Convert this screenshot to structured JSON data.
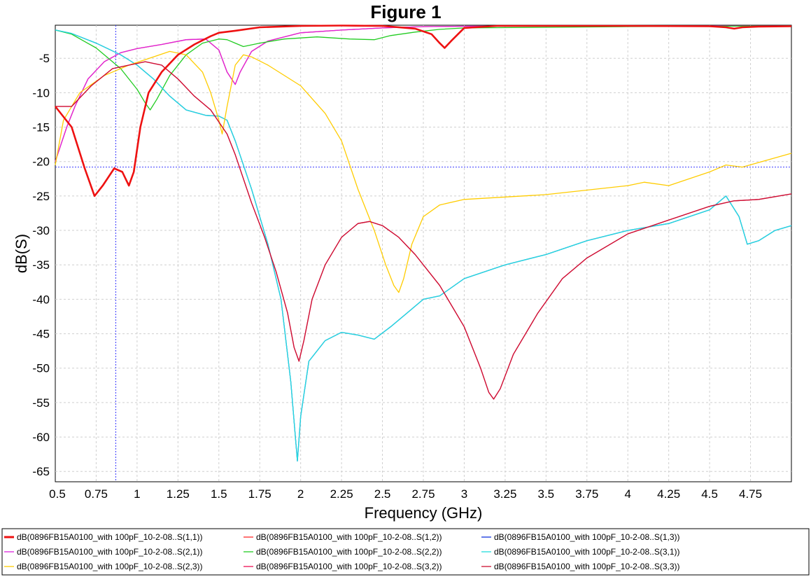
{
  "chart_data": {
    "type": "line",
    "title": "Figure 1",
    "xlabel": "Frequency (GHz)",
    "ylabel": "dB(S)",
    "xlim": [
      0.5,
      5.0
    ],
    "ylim": [
      -66.5,
      -0.2
    ],
    "grid": true,
    "x_ticks": [
      "0.5",
      "0.75",
      "1",
      "1.25",
      "1.5",
      "1.75",
      "2",
      "2.25",
      "2.5",
      "2.75",
      "3",
      "3.25",
      "3.5",
      "3.75",
      "4",
      "4.25",
      "4.5",
      "4.75"
    ],
    "y_ticks": [
      "-5",
      "-10",
      "-15",
      "-20",
      "-25",
      "-30",
      "-35",
      "-40",
      "-45",
      "-50",
      "-55",
      "-60",
      "-65"
    ],
    "x_tick_values": [
      0.5,
      0.75,
      1,
      1.25,
      1.5,
      1.75,
      2,
      2.25,
      2.5,
      2.75,
      3,
      3.25,
      3.5,
      3.75,
      4,
      4.25,
      4.5,
      4.75
    ],
    "y_tick_values": [
      -5,
      -10,
      -15,
      -20,
      -25,
      -30,
      -35,
      -40,
      -45,
      -50,
      -55,
      -60,
      -65
    ],
    "markers": {
      "x": 0.87,
      "y": -20.8,
      "color": "#3a3aff"
    },
    "legend_position": "bottom",
    "series": [
      {
        "name": "dB(0896FB15A0100_with 100pF_10-2-08..S(1,1))",
        "color": "#ee1111",
        "width": 2.6,
        "x": [
          0.5,
          0.6,
          0.68,
          0.74,
          0.79,
          0.86,
          0.91,
          0.95,
          0.98,
          1.02,
          1.07,
          1.15,
          1.25,
          1.35,
          1.45,
          1.5,
          1.6,
          1.75,
          2.0,
          2.25,
          2.5,
          2.7,
          2.8,
          2.85,
          2.88,
          2.92,
          3.0,
          3.2,
          3.5,
          4.0,
          4.5,
          4.6,
          4.65,
          4.7,
          4.8,
          5.0
        ],
        "values": [
          -12,
          -15,
          -21,
          -25,
          -23.5,
          -21,
          -21.5,
          -23.5,
          -21.5,
          -15,
          -10,
          -7,
          -4.5,
          -3,
          -1.8,
          -1.3,
          -1,
          -0.5,
          -0.3,
          -0.25,
          -0.3,
          -0.7,
          -1.5,
          -2.8,
          -3.5,
          -2.5,
          -0.6,
          -0.3,
          -0.3,
          -0.3,
          -0.35,
          -0.5,
          -0.7,
          -0.5,
          -0.4,
          -0.35
        ]
      },
      {
        "name": "dB(0896FB15A0100_with 100pF_10-2-08..S(1,2))",
        "color": "#ff2a2a",
        "width": 1.3,
        "x": [
          0.5,
          0.57,
          0.62,
          0.7,
          0.8,
          0.9,
          1.0,
          1.15,
          1.3,
          1.42,
          1.5,
          1.55,
          1.6,
          1.63,
          1.7,
          1.8,
          2.0,
          2.25,
          2.5,
          2.75,
          3.0,
          3.5,
          4.0,
          4.5,
          5.0
        ],
        "values": [
          -20,
          -15,
          -12,
          -8,
          -5.5,
          -4.2,
          -3.6,
          -3,
          -2.3,
          -2.2,
          -3.8,
          -7,
          -8.8,
          -7,
          -4,
          -2.5,
          -1.3,
          -0.9,
          -0.6,
          -0.4,
          -0.35,
          -0.3,
          -0.3,
          -0.3,
          -0.3
        ]
      },
      {
        "name": "dB(0896FB15A0100_with 100pF_10-2-08..S(1,3))",
        "color": "#1133dd",
        "width": 1.3,
        "x": [
          0.5,
          0.6,
          0.75,
          0.9,
          1.0,
          1.1,
          1.2,
          1.3,
          1.42,
          1.5,
          1.55,
          1.6,
          1.7,
          1.8,
          1.88,
          1.94,
          1.98,
          2.0,
          2.05,
          2.15,
          2.25,
          2.35,
          2.45,
          2.55,
          2.65,
          2.75,
          2.85,
          3.0,
          3.25,
          3.5,
          3.75,
          4.0,
          4.25,
          4.5,
          4.6,
          4.68,
          4.73,
          4.8,
          4.9,
          5.0
        ],
        "values": [
          -0.9,
          -1.4,
          -2.8,
          -4.5,
          -6,
          -8,
          -10.5,
          -12.5,
          -13.3,
          -13.4,
          -14,
          -17,
          -24,
          -32,
          -40,
          -52,
          -63.5,
          -57,
          -49,
          -46,
          -44.8,
          -45.2,
          -45.8,
          -44,
          -42,
          -40,
          -39.5,
          -37,
          -35,
          -33.5,
          -31.5,
          -30,
          -29,
          -27,
          -25,
          -28,
          -32,
          -31.5,
          -30,
          -29.3
        ]
      },
      {
        "name": "dB(0896FB15A0100_with 100pF_10-2-08..S(2,1))",
        "color": "#dd22dd",
        "width": 1.3,
        "x": [
          0.5,
          0.57,
          0.62,
          0.7,
          0.8,
          0.9,
          1.0,
          1.15,
          1.3,
          1.42,
          1.5,
          1.55,
          1.6,
          1.63,
          1.7,
          1.8,
          2.0,
          2.25,
          2.5,
          2.75,
          3.0,
          3.5,
          4.0,
          4.5,
          5.0
        ],
        "values": [
          -20,
          -15,
          -12,
          -8,
          -5.5,
          -4.2,
          -3.6,
          -3,
          -2.3,
          -2.2,
          -3.8,
          -7,
          -8.8,
          -7,
          -4,
          -2.5,
          -1.3,
          -0.9,
          -0.6,
          -0.4,
          -0.35,
          -0.3,
          -0.3,
          -0.3,
          -0.3
        ]
      },
      {
        "name": "dB(0896FB15A0100_with 100pF_10-2-08..S(2,2))",
        "color": "#22cc22",
        "width": 1.3,
        "x": [
          0.5,
          0.6,
          0.75,
          0.9,
          1.0,
          1.05,
          1.08,
          1.12,
          1.2,
          1.3,
          1.4,
          1.5,
          1.55,
          1.6,
          1.65,
          1.75,
          1.9,
          2.1,
          2.3,
          2.45,
          2.55,
          2.7,
          2.85,
          3.0,
          3.5,
          4.0,
          4.5,
          5.0
        ],
        "values": [
          -0.9,
          -1.5,
          -3.5,
          -6.5,
          -9.5,
          -11.5,
          -12.5,
          -11,
          -7.5,
          -4.5,
          -2.8,
          -2.2,
          -2.3,
          -2.8,
          -3.3,
          -2.8,
          -2.2,
          -1.9,
          -2.2,
          -2.3,
          -1.7,
          -1.2,
          -0.8,
          -0.6,
          -0.5,
          -0.4,
          -0.35,
          -0.3
        ]
      },
      {
        "name": "dB(0896FB15A0100_with 100pF_10-2-08..S(3,1))",
        "color": "#22dddd",
        "width": 1.3,
        "x": [
          0.5,
          0.6,
          0.75,
          0.9,
          1.0,
          1.1,
          1.2,
          1.3,
          1.42,
          1.5,
          1.55,
          1.6,
          1.7,
          1.8,
          1.88,
          1.94,
          1.98,
          2.0,
          2.05,
          2.15,
          2.25,
          2.35,
          2.45,
          2.55,
          2.65,
          2.75,
          2.85,
          3.0,
          3.25,
          3.5,
          3.75,
          4.0,
          4.25,
          4.5,
          4.6,
          4.68,
          4.73,
          4.8,
          4.9,
          5.0
        ],
        "values": [
          -0.9,
          -1.4,
          -2.8,
          -4.5,
          -6,
          -8,
          -10.5,
          -12.5,
          -13.3,
          -13.4,
          -14,
          -17,
          -24,
          -32,
          -40,
          -52,
          -63.5,
          -57,
          -49,
          -46,
          -44.8,
          -45.2,
          -45.8,
          -44,
          -42,
          -40,
          -39.5,
          -37,
          -35,
          -33.5,
          -31.5,
          -30,
          -29,
          -27,
          -25,
          -28,
          -32,
          -31.5,
          -30,
          -29.3
        ]
      },
      {
        "name": "dB(0896FB15A0100_with 100pF_10-2-08..S(2,3))",
        "color": "#ffcc00",
        "width": 1.3,
        "x": [
          0.5,
          0.55,
          0.65,
          0.8,
          0.95,
          1.1,
          1.2,
          1.3,
          1.4,
          1.45,
          1.5,
          1.52,
          1.55,
          1.6,
          1.65,
          1.7,
          1.8,
          2.0,
          2.15,
          2.25,
          2.35,
          2.45,
          2.52,
          2.57,
          2.6,
          2.63,
          2.68,
          2.75,
          2.85,
          3.0,
          3.5,
          4.0,
          4.1,
          4.25,
          4.5,
          4.6,
          4.7,
          5.0
        ],
        "values": [
          -20.5,
          -14,
          -10,
          -7.5,
          -6,
          -4.8,
          -4,
          -4.5,
          -7,
          -10,
          -14,
          -16,
          -12,
          -6,
          -4.5,
          -4.8,
          -6,
          -9,
          -13,
          -17,
          -24,
          -30,
          -35,
          -38,
          -39,
          -37,
          -32,
          -28,
          -26.3,
          -25.5,
          -24.8,
          -23.5,
          -23,
          -23.5,
          -21.5,
          -20.5,
          -20.8,
          -18.8
        ]
      },
      {
        "name": "dB(0896FB15A0100_with 100pF_10-2-08..S(3,2))",
        "color": "#ee1155",
        "width": 1.3,
        "x": [
          0.5,
          0.6,
          0.72,
          0.85,
          0.95,
          1.05,
          1.15,
          1.25,
          1.35,
          1.45,
          1.55,
          1.6,
          1.7,
          1.78,
          1.85,
          1.92,
          1.96,
          1.99,
          2.02,
          2.07,
          2.15,
          2.25,
          2.35,
          2.42,
          2.5,
          2.6,
          2.7,
          2.85,
          3.0,
          3.1,
          3.15,
          3.18,
          3.22,
          3.3,
          3.45,
          3.6,
          3.75,
          4.0,
          4.25,
          4.5,
          4.65,
          4.8,
          5.0
        ],
        "values": [
          -12,
          -12,
          -9,
          -6.5,
          -6,
          -5.5,
          -6,
          -8,
          -10.5,
          -12.5,
          -16,
          -19,
          -26,
          -31,
          -36,
          -42,
          -47,
          -49,
          -46,
          -40,
          -35,
          -31,
          -29,
          -28.7,
          -29.3,
          -31,
          -33.5,
          -38,
          -44,
          -50,
          -53.5,
          -54.5,
          -53,
          -48,
          -42,
          -37,
          -34,
          -30.5,
          -28.5,
          -26.5,
          -25.7,
          -25.5,
          -24.7
        ]
      },
      {
        "name": "dB(0896FB15A0100_with 100pF_10-2-08..S(3,3))",
        "color": "#cc1133",
        "width": 1.3,
        "x": [
          0.5,
          0.6,
          0.72,
          0.85,
          0.95,
          1.05,
          1.15,
          1.25,
          1.35,
          1.45,
          1.55,
          1.6,
          1.7,
          1.78,
          1.85,
          1.92,
          1.96,
          1.99,
          2.02,
          2.07,
          2.15,
          2.25,
          2.35,
          2.42,
          2.5,
          2.6,
          2.7,
          2.85,
          3.0,
          3.1,
          3.15,
          3.18,
          3.22,
          3.3,
          3.45,
          3.6,
          3.75,
          4.0,
          4.25,
          4.5,
          4.65,
          4.8,
          5.0
        ],
        "values": [
          -12,
          -12,
          -9,
          -6.5,
          -6,
          -5.5,
          -6,
          -8,
          -10.5,
          -12.5,
          -16,
          -19,
          -26,
          -31,
          -36,
          -42,
          -47,
          -49,
          -46,
          -40,
          -35,
          -31,
          -29,
          -28.7,
          -29.3,
          -31,
          -33.5,
          -38,
          -44,
          -50,
          -53.5,
          -54.5,
          -53,
          -48,
          -42,
          -37,
          -34,
          -30.5,
          -28.5,
          -26.5,
          -25.7,
          -25.5,
          -24.7
        ]
      }
    ]
  }
}
